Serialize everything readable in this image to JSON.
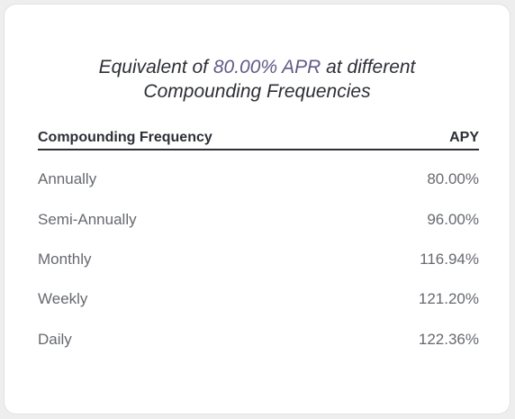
{
  "title": {
    "prefix": "Equivalent of ",
    "highlight": "80.00% APR",
    "suffix": " at different",
    "line2": "Compounding Frequencies"
  },
  "table": {
    "headers": [
      "Compounding Frequency",
      "APY"
    ],
    "rows": [
      {
        "frequency": "Annually",
        "apy": "80.00%"
      },
      {
        "frequency": "Semi-Annually",
        "apy": "96.00%"
      },
      {
        "frequency": "Monthly",
        "apy": "116.94%"
      },
      {
        "frequency": "Weekly",
        "apy": "121.20%"
      },
      {
        "frequency": "Daily",
        "apy": "122.36%"
      }
    ]
  },
  "colors": {
    "highlight": "#5e5a8c",
    "text_dark": "#2c2f36",
    "text_muted": "#666a70"
  }
}
